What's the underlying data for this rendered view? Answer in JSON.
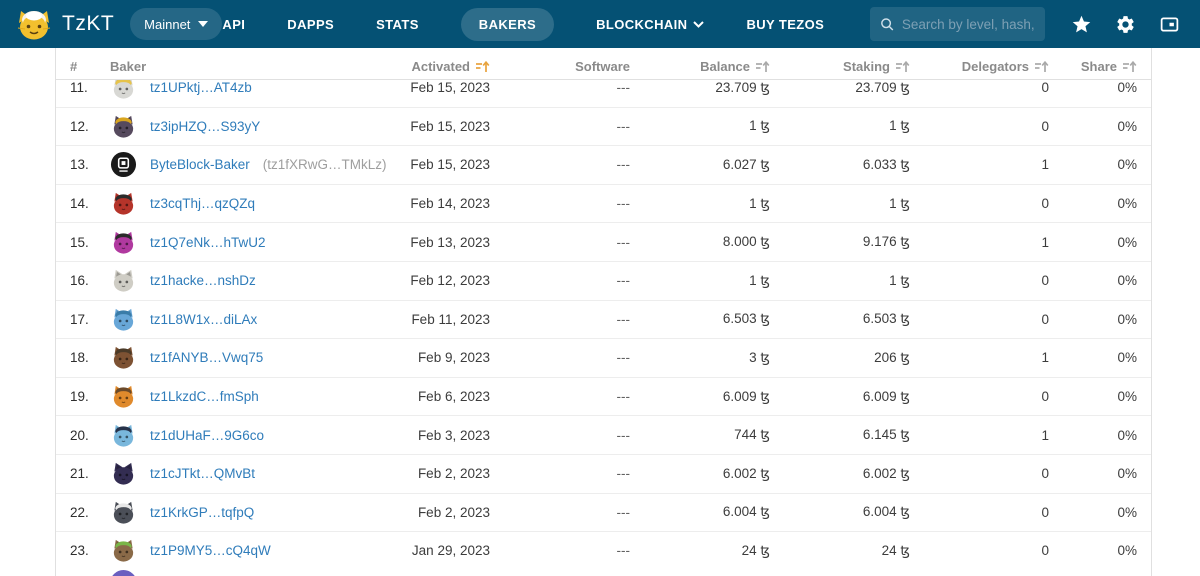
{
  "header": {
    "brand": "TzKT",
    "network": "Mainnet",
    "nav": [
      {
        "label": "API",
        "active": false,
        "dropdown": false
      },
      {
        "label": "DAPPS",
        "active": false,
        "dropdown": false
      },
      {
        "label": "STATS",
        "active": false,
        "dropdown": false
      },
      {
        "label": "BAKERS",
        "active": true,
        "dropdown": false
      },
      {
        "label": "BLOCKCHAIN",
        "active": false,
        "dropdown": true
      },
      {
        "label": "BUY TEZOS",
        "active": false,
        "dropdown": false
      }
    ],
    "search": {
      "placeholder": "Search by level, hash, alias",
      "value": ""
    },
    "colors": {
      "navbar": "#055174",
      "active_pill": "rgba(255,255,255,0.16)",
      "logo_yellow": "#f2c02e"
    }
  },
  "table": {
    "columns": [
      {
        "label": "#",
        "sortable": false,
        "sorted": false,
        "align": "left"
      },
      {
        "label": "Baker",
        "sortable": false,
        "sorted": false,
        "align": "left"
      },
      {
        "label": "Activated",
        "sortable": true,
        "sorted": true,
        "align": "right"
      },
      {
        "label": "Software",
        "sortable": false,
        "sorted": false,
        "align": "right"
      },
      {
        "label": "Balance",
        "sortable": true,
        "sorted": false,
        "align": "right"
      },
      {
        "label": "Staking",
        "sortable": true,
        "sorted": false,
        "align": "right"
      },
      {
        "label": "Delegators",
        "sortable": true,
        "sorted": false,
        "align": "right"
      },
      {
        "label": "Share",
        "sortable": true,
        "sorted": false,
        "align": "right"
      }
    ],
    "sort_active_color": "#e8a33d",
    "rows": [
      {
        "index": "11.",
        "baker": "tz1UPktj…AT4zb",
        "suffix": "",
        "activated": "Feb 15, 2023",
        "software": "---",
        "balance": "23.709 ꜩ",
        "staking": "23.709 ꜩ",
        "delegators": "0",
        "share": "0%",
        "avatar": {
          "type": "cat",
          "color": "#d8d8d4",
          "hat": "#e6c34a"
        }
      },
      {
        "index": "12.",
        "baker": "tz3ipHZQ…S93yY",
        "suffix": "",
        "activated": "Feb 15, 2023",
        "software": "---",
        "balance": "1 ꜩ",
        "staking": "1 ꜩ",
        "delegators": "0",
        "share": "0%",
        "avatar": {
          "type": "cat",
          "color": "#564a5e",
          "hat": "#d9a520"
        }
      },
      {
        "index": "13.",
        "baker": "ByteBlock-Baker",
        "suffix": "(tz1fXRwG…TMkLz)",
        "activated": "Feb 15, 2023",
        "software": "---",
        "balance": "6.027 ꜩ",
        "staking": "6.033 ꜩ",
        "delegators": "1",
        "share": "0%",
        "avatar": {
          "type": "logo",
          "color": "#1a1a1a",
          "hat": ""
        }
      },
      {
        "index": "14.",
        "baker": "tz3cqThj…qzQZq",
        "suffix": "",
        "activated": "Feb 14, 2023",
        "software": "---",
        "balance": "1 ꜩ",
        "staking": "1 ꜩ",
        "delegators": "0",
        "share": "0%",
        "avatar": {
          "type": "cat",
          "color": "#b5342a",
          "hat": "#2b2b2b"
        }
      },
      {
        "index": "15.",
        "baker": "tz1Q7eNk…hTwU2",
        "suffix": "",
        "activated": "Feb 13, 2023",
        "software": "---",
        "balance": "8.000 ꜩ",
        "staking": "9.176 ꜩ",
        "delegators": "1",
        "share": "0%",
        "avatar": {
          "type": "cat",
          "color": "#b0399f",
          "hat": "#2b2b2b"
        }
      },
      {
        "index": "16.",
        "baker": "tz1hacke…nshDz",
        "suffix": "",
        "activated": "Feb 12, 2023",
        "software": "---",
        "balance": "1 ꜩ",
        "staking": "1 ꜩ",
        "delegators": "0",
        "share": "0%",
        "avatar": {
          "type": "cat",
          "color": "#cfcdc5",
          "hat": ""
        }
      },
      {
        "index": "17.",
        "baker": "tz1L8W1x…diLAx",
        "suffix": "",
        "activated": "Feb 11, 2023",
        "software": "---",
        "balance": "6.503 ꜩ",
        "staking": "6.503 ꜩ",
        "delegators": "0",
        "share": "0%",
        "avatar": {
          "type": "cat",
          "color": "#68a7d8",
          "hat": "#3a7ca8"
        }
      },
      {
        "index": "18.",
        "baker": "tz1fANYB…Vwq75",
        "suffix": "",
        "activated": "Feb 9, 2023",
        "software": "---",
        "balance": "3 ꜩ",
        "staking": "206 ꜩ",
        "delegators": "1",
        "share": "0%",
        "avatar": {
          "type": "cat",
          "color": "#7d5233",
          "hat": "#4a3a28"
        }
      },
      {
        "index": "19.",
        "baker": "tz1LkzdC…fmSph",
        "suffix": "",
        "activated": "Feb 6, 2023",
        "software": "---",
        "balance": "6.009 ꜩ",
        "staking": "6.009 ꜩ",
        "delegators": "0",
        "share": "0%",
        "avatar": {
          "type": "cat",
          "color": "#e08a2c",
          "hat": "#6b4a2a"
        }
      },
      {
        "index": "20.",
        "baker": "tz1dUHaF…9G6co",
        "suffix": "",
        "activated": "Feb 3, 2023",
        "software": "---",
        "balance": "744 ꜩ",
        "staking": "6.145 ꜩ",
        "delegators": "1",
        "share": "0%",
        "avatar": {
          "type": "cat",
          "color": "#79b7dc",
          "hat": "#26324a"
        }
      },
      {
        "index": "21.",
        "baker": "tz1cJTkt…QMvBt",
        "suffix": "",
        "activated": "Feb 2, 2023",
        "software": "---",
        "balance": "6.002 ꜩ",
        "staking": "6.002 ꜩ",
        "delegators": "0",
        "share": "0%",
        "avatar": {
          "type": "cat",
          "color": "#332d52",
          "hat": ""
        }
      },
      {
        "index": "22.",
        "baker": "tz1KrkGP…tqfpQ",
        "suffix": "",
        "activated": "Feb 2, 2023",
        "software": "---",
        "balance": "6.004 ꜩ",
        "staking": "6.004 ꜩ",
        "delegators": "0",
        "share": "0%",
        "avatar": {
          "type": "cat",
          "color": "#4b4f58",
          "hat": "#e8e8e8"
        }
      },
      {
        "index": "23.",
        "baker": "tz1P9MY5…cQ4qW",
        "suffix": "",
        "activated": "Jan 29, 2023",
        "software": "---",
        "balance": "24 ꜩ",
        "staking": "24 ꜩ",
        "delegators": "0",
        "share": "0%",
        "avatar": {
          "type": "cat",
          "color": "#8a6a48",
          "hat": "#7ab648"
        }
      }
    ],
    "partial_next_avatar_color": "#6a5fc0"
  }
}
